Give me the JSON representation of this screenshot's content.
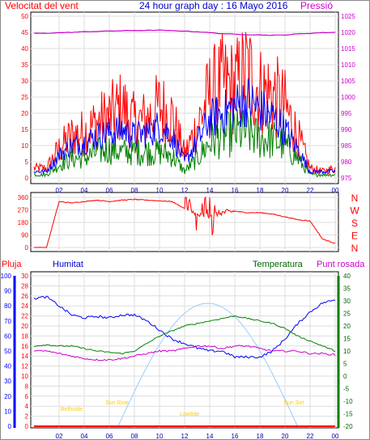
{
  "header": {
    "title": "24 hour graph day : 16 Mayo 2016",
    "left_label": "Velocitat del vent",
    "right_label": "Pressió"
  },
  "colors": {
    "wind_max": "#ff0000",
    "wind_avg": "#0000ff",
    "wind_min": "#008000",
    "pressure": "#cc00cc",
    "direction": "#ff0000",
    "rain": "#ff0000",
    "humidity": "#0000ff",
    "temperature": "#008000",
    "dewpoint": "#cc00cc",
    "sun": "#99ccff",
    "sun_labels": "#ffcc00"
  },
  "x_ticks": [
    "02",
    "04",
    "06",
    "08",
    "10",
    "12",
    "14",
    "16",
    "18",
    "20",
    "22",
    "00"
  ],
  "panels": {
    "wind": {
      "y_left_ticks": [
        "0",
        "5",
        "10",
        "15",
        "20",
        "25",
        "30",
        "35",
        "40",
        "45",
        "50"
      ],
      "y_right_ticks": [
        "975",
        "980",
        "985",
        "990",
        "995",
        "1000",
        "1005",
        "1010",
        "1015",
        "1020",
        "1025"
      ]
    },
    "direction": {
      "y_left_ticks": [
        "0",
        "90",
        "180",
        "270",
        "360"
      ],
      "compass": [
        "N",
        "W",
        "S",
        "E",
        "N"
      ]
    },
    "lower": {
      "labels": {
        "rain": "Pluja",
        "humidity": "Humitat",
        "temperature": "Temperatura",
        "dewpoint": "Punt rosada"
      },
      "humidity_ticks": [
        "0",
        "10",
        "20",
        "30",
        "40",
        "50",
        "60",
        "70",
        "80",
        "90",
        "100"
      ],
      "rain_ticks": [
        "0",
        "2",
        "4",
        "6",
        "8",
        "10",
        "12",
        "14",
        "16",
        "18",
        "20",
        "22",
        "24",
        "26",
        "28",
        "30"
      ],
      "temp_ticks": [
        "-20",
        "-15",
        "-10",
        "-5",
        "0",
        "5",
        "10",
        "15",
        "20",
        "25",
        "30",
        "35",
        "40"
      ],
      "sun_labels": [
        "Birthside",
        "Sun Rise",
        "Lowtide",
        "Sun Set"
      ]
    }
  },
  "chart_data": [
    {
      "type": "line",
      "title": "24 hour graph day : 16 Mayo 2016",
      "x_hours": [
        0,
        1,
        2,
        3,
        4,
        5,
        6,
        7,
        8,
        9,
        10,
        11,
        12,
        13,
        14,
        15,
        16,
        17,
        18,
        19,
        20,
        21,
        22,
        23,
        24
      ],
      "series": [
        {
          "name": "Velocitat del vent",
          "values": [
            3,
            3,
            9,
            13,
            14,
            17,
            19,
            22,
            17,
            18,
            22,
            19,
            7,
            16,
            26,
            29,
            28,
            33,
            27,
            26,
            22,
            13,
            3,
            2,
            3
          ]
        },
        {
          "name": "Velocitat del vent",
          "values": [
            2,
            2,
            7,
            10,
            11,
            13,
            14,
            15,
            13,
            14,
            16,
            13,
            5,
            11,
            18,
            20,
            22,
            24,
            21,
            19,
            15,
            9,
            2,
            2,
            2
          ]
        },
        {
          "name": "Velocitat del vent",
          "values": [
            1,
            1,
            4,
            6,
            6,
            8,
            9,
            8,
            8,
            8,
            8,
            7,
            2,
            6,
            11,
            13,
            14,
            14,
            12,
            12,
            10,
            6,
            1,
            1,
            1
          ]
        },
        {
          "name": "Pressió",
          "values": [
            1019.7,
            1019.7,
            1019.9,
            1020.0,
            1020.2,
            1020.3,
            1020.4,
            1020.5,
            1020.6,
            1020.6,
            1020.7,
            1020.5,
            1020.4,
            1020.2,
            1019.9,
            1019.6,
            1019.4,
            1019.3,
            1019.2,
            1019.1,
            1019.2,
            1019.5,
            1019.7,
            1019.9,
            1020.0
          ]
        }
      ],
      "ylim": [
        0,
        50
      ],
      "y2lim": [
        975,
        1025
      ]
    },
    {
      "type": "line",
      "x_hours": [
        0,
        1,
        2,
        3,
        4,
        5,
        6,
        7,
        8,
        9,
        10,
        11,
        12,
        13,
        14,
        15,
        16,
        17,
        18,
        19,
        20,
        21,
        22,
        23,
        24
      ],
      "series": [
        {
          "name": "Direcció",
          "values": [
            0,
            0,
            330,
            320,
            330,
            340,
            330,
            340,
            345,
            340,
            335,
            330,
            280,
            230,
            230,
            250,
            260,
            250,
            250,
            240,
            220,
            200,
            190,
            60,
            30
          ]
        }
      ],
      "ylim": [
        0,
        360
      ]
    },
    {
      "type": "line",
      "x_hours": [
        0,
        1,
        2,
        3,
        4,
        5,
        6,
        7,
        8,
        9,
        10,
        11,
        12,
        13,
        14,
        15,
        16,
        17,
        18,
        19,
        20,
        21,
        22,
        23,
        24
      ],
      "series": [
        {
          "name": "Humitat",
          "values": [
            85,
            86,
            80,
            74,
            72,
            73,
            72,
            74,
            74,
            70,
            64,
            58,
            55,
            52,
            50,
            50,
            46,
            46,
            46,
            50,
            58,
            68,
            76,
            82,
            84
          ]
        },
        {
          "name": "Temperatura",
          "values": [
            12,
            12.5,
            12,
            12,
            11,
            10,
            9.5,
            9,
            10,
            13,
            16,
            18,
            20,
            21,
            22,
            23,
            24,
            23,
            22,
            21,
            19,
            16,
            14,
            12,
            10
          ]
        },
        {
          "name": "Punt rosada",
          "values": [
            10,
            10,
            9,
            8,
            7,
            6.5,
            6.5,
            7,
            8,
            9,
            10,
            10,
            11,
            12,
            12,
            11,
            12,
            12,
            11,
            10,
            10,
            10,
            9,
            9,
            8.5
          ]
        },
        {
          "name": "Pluja",
          "values": [
            0,
            0,
            0,
            0,
            0,
            0,
            0,
            0,
            0,
            0,
            0,
            0,
            0,
            0,
            0,
            0,
            0,
            0,
            0,
            0,
            0,
            0,
            0,
            0,
            0
          ]
        }
      ],
      "ylim": [
        0,
        100
      ]
    }
  ]
}
